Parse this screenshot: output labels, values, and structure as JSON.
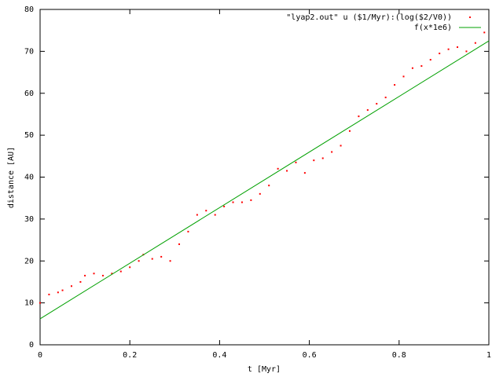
{
  "chart_data": {
    "type": "scatter",
    "xlabel": "t [Myr]",
    "ylabel": "distance [AU]",
    "xlim": [
      0,
      1
    ],
    "ylim": [
      0,
      80
    ],
    "xticks": [
      0,
      0.2,
      0.4,
      0.6,
      0.8,
      1
    ],
    "yticks": [
      0,
      10,
      20,
      30,
      40,
      50,
      60,
      70,
      80
    ],
    "grid": false,
    "legend": "top-right",
    "series": [
      {
        "name": "\"lyap2.out\" u ($1/Myr):(log($2/V0))",
        "color": "#ff0000",
        "style": "points",
        "x": [
          0,
          0.02,
          0.04,
          0.05,
          0.07,
          0.09,
          0.1,
          0.12,
          0.14,
          0.16,
          0.18,
          0.2,
          0.22,
          0.23,
          0.25,
          0.27,
          0.29,
          0.31,
          0.33,
          0.35,
          0.37,
          0.39,
          0.41,
          0.43,
          0.45,
          0.47,
          0.49,
          0.51,
          0.53,
          0.55,
          0.57,
          0.59,
          0.61,
          0.63,
          0.65,
          0.67,
          0.69,
          0.71,
          0.73,
          0.75,
          0.77,
          0.79,
          0.81,
          0.83,
          0.85,
          0.87,
          0.89,
          0.91,
          0.93,
          0.95,
          0.97,
          0.99
        ],
        "values": [
          10,
          12,
          12.5,
          13,
          14,
          15,
          16.5,
          17,
          16.5,
          17,
          17.5,
          18.5,
          20,
          21.5,
          20.5,
          21,
          20,
          24,
          27,
          31,
          32,
          31,
          33,
          34,
          34,
          34.5,
          36,
          38,
          42,
          41.5,
          43.5,
          41,
          44,
          44.5,
          46,
          47.5,
          51,
          54.5,
          56,
          57.5,
          59,
          62,
          64,
          66,
          66.5,
          68,
          69.5,
          70.5,
          71,
          70,
          72,
          74.5
        ]
      },
      {
        "name": "f(x*1e6)",
        "color": "#00a000",
        "style": "line",
        "x": [
          0,
          1
        ],
        "values": [
          6.2,
          72.5
        ]
      }
    ]
  }
}
